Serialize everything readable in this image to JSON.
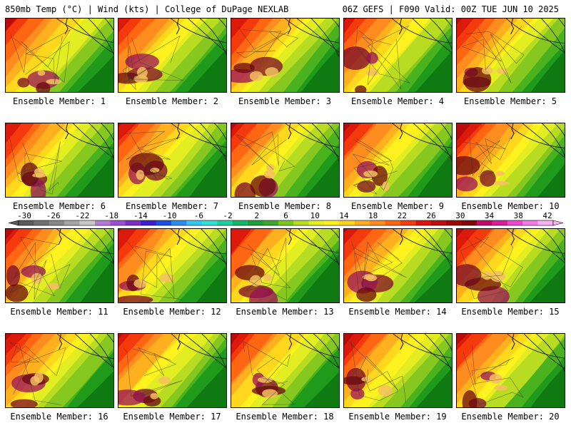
{
  "header": {
    "left": "850mb Temp (°C) | Wind (kts) | College of DuPage NEXLAB",
    "right": "06Z GEFS | F090 Valid: 00Z TUE JUN 10 2025"
  },
  "panels": [
    {
      "label": "Ensemble Member: 1",
      "icons": [
        "map-panel"
      ],
      "warmth": 0.55
    },
    {
      "label": "Ensemble Member: 2",
      "icons": [
        "map-panel"
      ],
      "warmth": 0.45
    },
    {
      "label": "Ensemble Member: 3",
      "icons": [
        "map-panel"
      ],
      "warmth": 0.5
    },
    {
      "label": "Ensemble Member: 4",
      "icons": [
        "map-panel"
      ],
      "warmth": 0.5
    },
    {
      "label": "Ensemble Member: 5",
      "icons": [
        "map-panel"
      ],
      "warmth": 0.6
    },
    {
      "label": "Ensemble Member: 6",
      "icons": [
        "map-panel"
      ],
      "warmth": 0.45
    },
    {
      "label": "Ensemble Member: 7",
      "icons": [
        "map-panel"
      ],
      "warmth": 0.45
    },
    {
      "label": "Ensemble Member: 8",
      "icons": [
        "map-panel"
      ],
      "warmth": 0.5
    },
    {
      "label": "Ensemble Member: 9",
      "icons": [
        "map-panel"
      ],
      "warmth": 0.5
    },
    {
      "label": "Ensemble Member: 10",
      "icons": [
        "map-panel"
      ],
      "warmth": 0.7
    },
    {
      "label": "Ensemble Member: 11",
      "icons": [
        "map-panel"
      ],
      "warmth": 0.5
    },
    {
      "label": "Ensemble Member: 12",
      "icons": [
        "map-panel"
      ],
      "warmth": 0.55
    },
    {
      "label": "Ensemble Member: 13",
      "icons": [
        "map-panel"
      ],
      "warmth": 0.5
    },
    {
      "label": "Ensemble Member: 14",
      "icons": [
        "map-panel"
      ],
      "warmth": 0.55
    },
    {
      "label": "Ensemble Member: 15",
      "icons": [
        "map-panel"
      ],
      "warmth": 0.65
    },
    {
      "label": "Ensemble Member: 16",
      "icons": [
        "map-panel"
      ],
      "warmth": 0.55
    },
    {
      "label": "Ensemble Member: 17",
      "icons": [
        "map-panel"
      ],
      "warmth": 0.45
    },
    {
      "label": "Ensemble Member: 18",
      "icons": [
        "map-panel"
      ],
      "warmth": 0.55
    },
    {
      "label": "Ensemble Member: 19",
      "icons": [
        "map-panel"
      ],
      "warmth": 0.55
    },
    {
      "label": "Ensemble Member: 20",
      "icons": [
        "map-panel"
      ],
      "warmth": 0.6
    }
  ],
  "colorbar": {
    "tick_labels": [
      "-30",
      "-26",
      "-22",
      "-18",
      "-14",
      "-10",
      "-6",
      "-2",
      "2",
      "6",
      "10",
      "14",
      "18",
      "22",
      "26",
      "30",
      "34",
      "38",
      "42"
    ],
    "colors": [
      "#5a5a5a",
      "#707070",
      "#888888",
      "#a6a6a6",
      "#c8c8c8",
      "#b37ad8",
      "#9b4fd0",
      "#7d2ec4",
      "#3b1fd0",
      "#1f4fe0",
      "#2a8cf0",
      "#33c8f0",
      "#33e0d8",
      "#1fd0a0",
      "#12b86a",
      "#1ba03c",
      "#3aa82a",
      "#78c81e",
      "#b8dc1e",
      "#e6f01e",
      "#fff01e",
      "#ffd21e",
      "#ffae1e",
      "#ff8a1e",
      "#ff6410",
      "#f43c0c",
      "#e0140c",
      "#c00c0c",
      "#a00808",
      "#860606",
      "#c00a6a",
      "#d81e9c",
      "#ee46d0",
      "#f778e8",
      "#ffb0f4"
    ]
  }
}
